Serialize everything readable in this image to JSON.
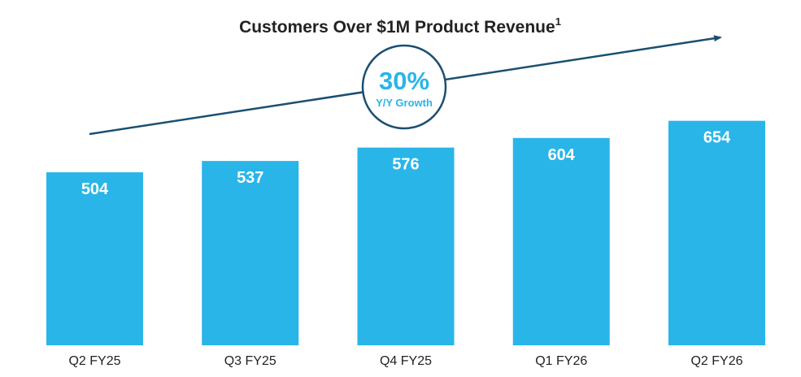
{
  "chart_data": {
    "type": "bar",
    "title": "Customers Over $1M Product Revenue",
    "title_superscript": "1",
    "categories": [
      "Q2 FY25",
      "Q3 FY25",
      "Q4 FY25",
      "Q1 FY26",
      "Q2 FY26"
    ],
    "values": [
      504,
      537,
      576,
      604,
      654
    ],
    "ylim": [
      0,
      720
    ],
    "grid": false,
    "legend": "none",
    "annotation": {
      "value": "30%",
      "text": "Y/Y Growth"
    }
  },
  "colors": {
    "bar": "#29b5e8",
    "arrow": "#1b4f72",
    "circle_border": "#1b4f72",
    "growth_text": "#29b5e8",
    "label_text": "#ffffff"
  },
  "icons": {
    "trend": "trend-arrow-icon"
  }
}
